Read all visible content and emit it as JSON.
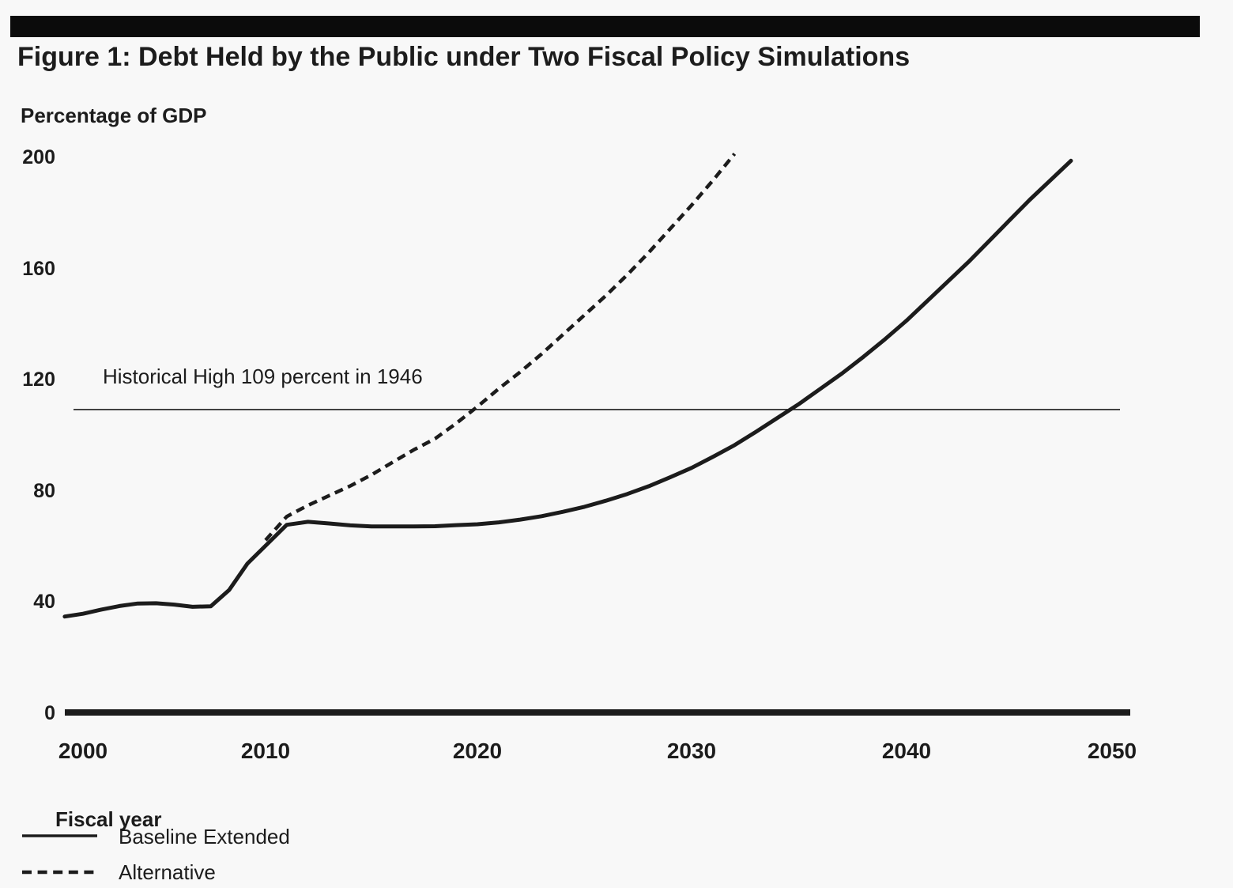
{
  "colors": {
    "ink": "#1c1c1c",
    "background": "#f8f8f8",
    "top_bar": "#0b0b0b"
  },
  "chart_data": {
    "type": "line",
    "title": "Figure 1: Debt Held by the Public under Two Fiscal Policy Simulations",
    "ylabel": "Percentage of GDP",
    "xlabel": "Fiscal year",
    "xlim": [
      1999,
      2050
    ],
    "ylim": [
      0,
      200
    ],
    "x_ticks": [
      2000,
      2010,
      2020,
      2030,
      2040,
      2050
    ],
    "y_ticks": [
      0,
      40,
      80,
      120,
      160,
      200
    ],
    "grid": false,
    "legend_position": "below-chart-left",
    "annotation": {
      "text": "Historical High 109 percent in 1946",
      "line_value": 109
    },
    "series": [
      {
        "name": "Baseline Extended",
        "line_style": "solid",
        "points": [
          [
            1999,
            34.5
          ],
          [
            2000,
            35.5
          ],
          [
            2001,
            37
          ],
          [
            2002,
            38.3
          ],
          [
            2003,
            39.2
          ],
          [
            2004,
            39.3
          ],
          [
            2005,
            38.8
          ],
          [
            2006,
            38
          ],
          [
            2007,
            38.2
          ],
          [
            2008,
            44
          ],
          [
            2009,
            53.5
          ],
          [
            2010,
            60
          ],
          [
            2011,
            67.5
          ],
          [
            2012,
            68.6
          ],
          [
            2013,
            68
          ],
          [
            2014,
            67.3
          ],
          [
            2015,
            66.9
          ],
          [
            2016,
            66.9
          ],
          [
            2017,
            66.9
          ],
          [
            2018,
            67
          ],
          [
            2019,
            67.4
          ],
          [
            2020,
            67.7
          ],
          [
            2021,
            68.4
          ],
          [
            2022,
            69.4
          ],
          [
            2023,
            70.6
          ],
          [
            2024,
            72.2
          ],
          [
            2025,
            74
          ],
          [
            2026,
            76.2
          ],
          [
            2027,
            78.6
          ],
          [
            2028,
            81.4
          ],
          [
            2029,
            84.6
          ],
          [
            2030,
            88
          ],
          [
            2031,
            92
          ],
          [
            2032,
            96.2
          ],
          [
            2033,
            101
          ],
          [
            2034,
            106
          ],
          [
            2035,
            111
          ],
          [
            2036,
            116.5
          ],
          [
            2037,
            122
          ],
          [
            2038,
            128
          ],
          [
            2039,
            134.3
          ],
          [
            2040,
            141
          ],
          [
            2041,
            148
          ],
          [
            2042,
            155
          ],
          [
            2043,
            162
          ],
          [
            2044,
            169.5
          ],
          [
            2045,
            177
          ],
          [
            2046,
            184.5
          ],
          [
            2047,
            191.5
          ],
          [
            2048,
            198.5
          ]
        ]
      },
      {
        "name": "Alternative",
        "line_style": "dashed",
        "points": [
          [
            2010,
            62
          ],
          [
            2011,
            70.5
          ],
          [
            2012,
            74.5
          ],
          [
            2013,
            78
          ],
          [
            2014,
            81.5
          ],
          [
            2015,
            85.5
          ],
          [
            2016,
            90
          ],
          [
            2017,
            94.5
          ],
          [
            2018,
            98.5
          ],
          [
            2019,
            104
          ],
          [
            2020,
            110
          ],
          [
            2021,
            116.5
          ],
          [
            2022,
            122.5
          ],
          [
            2023,
            129
          ],
          [
            2024,
            136
          ],
          [
            2025,
            143
          ],
          [
            2026,
            150
          ],
          [
            2027,
            157.5
          ],
          [
            2028,
            165.5
          ],
          [
            2029,
            174
          ],
          [
            2030,
            182.5
          ],
          [
            2031,
            191.5
          ],
          [
            2032,
            201
          ]
        ]
      }
    ]
  },
  "legend": {
    "items": [
      {
        "label": "Baseline Extended",
        "style": "solid"
      },
      {
        "label": "Alternative",
        "style": "dashed"
      }
    ]
  }
}
